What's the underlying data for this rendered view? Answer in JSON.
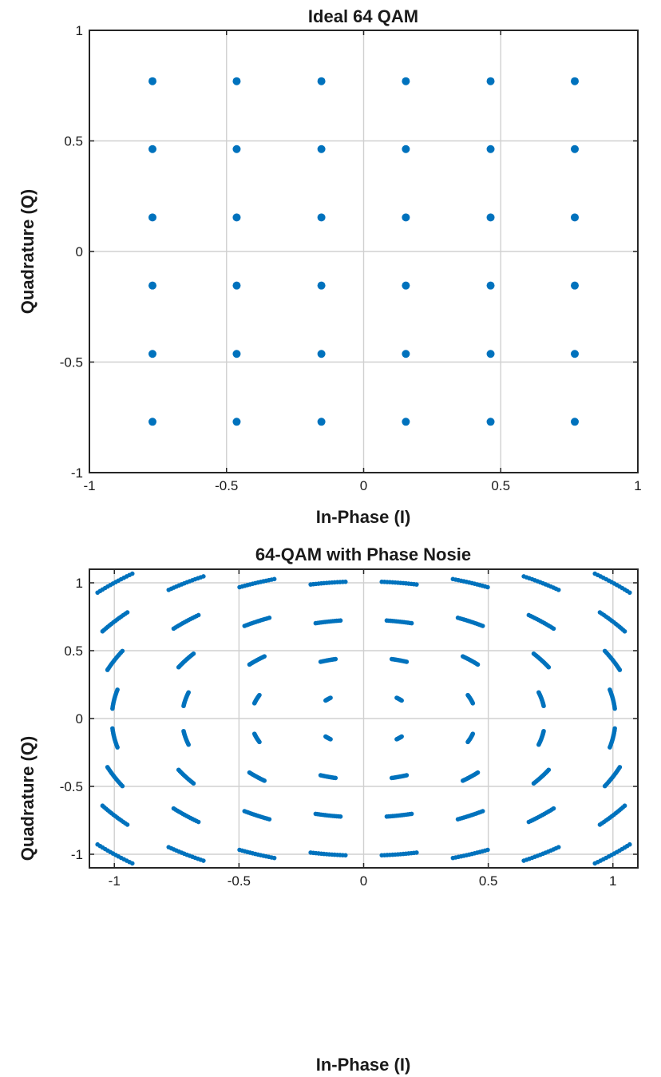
{
  "chart_data": [
    {
      "type": "scatter",
      "title": "Ideal 64 QAM",
      "xlabel": "In-Phase (I)",
      "ylabel": "Quadrature (Q)",
      "xlim": [
        -1,
        1
      ],
      "ylim": [
        -1,
        1
      ],
      "xticks": [
        -1,
        -0.5,
        0,
        0.5,
        1
      ],
      "yticks": [
        -1,
        -0.5,
        0,
        0.5,
        1
      ],
      "xtick_labels": [
        "-1",
        "-0.5",
        "0",
        "0.5",
        "1"
      ],
      "ytick_labels": [
        "-1",
        "-0.5",
        "0",
        "0.5",
        "1"
      ],
      "grid": true,
      "color": "#0072BD",
      "levels": [
        -0.77,
        -0.463,
        -0.154,
        0.154,
        0.463,
        0.77
      ],
      "note_points": "all combinations of levels for I and Q (36 visible constellation points)"
    },
    {
      "type": "scatter",
      "title": "64-QAM with Phase Nosie",
      "xlabel": "In-Phase (I)",
      "ylabel": "Quadrature (Q)",
      "xlim": [
        -1.1,
        1.1
      ],
      "ylim": [
        -1.1,
        1.1
      ],
      "xticks": [
        -1,
        -0.5,
        0,
        0.5,
        1
      ],
      "yticks": [
        -1,
        -0.5,
        0,
        0.5,
        1
      ],
      "xtick_labels": [
        "-1",
        "-0.5",
        "0",
        "0.5",
        "1"
      ],
      "ytick_labels": [
        "-1",
        "-0.5",
        "0",
        "0.5",
        "1"
      ],
      "grid": true,
      "color": "#0072BD",
      "levels": [
        -1.0,
        -0.714,
        -0.429,
        -0.143,
        0.143,
        0.429,
        0.714,
        1.0
      ],
      "phase_spread_deg": 4
    }
  ]
}
